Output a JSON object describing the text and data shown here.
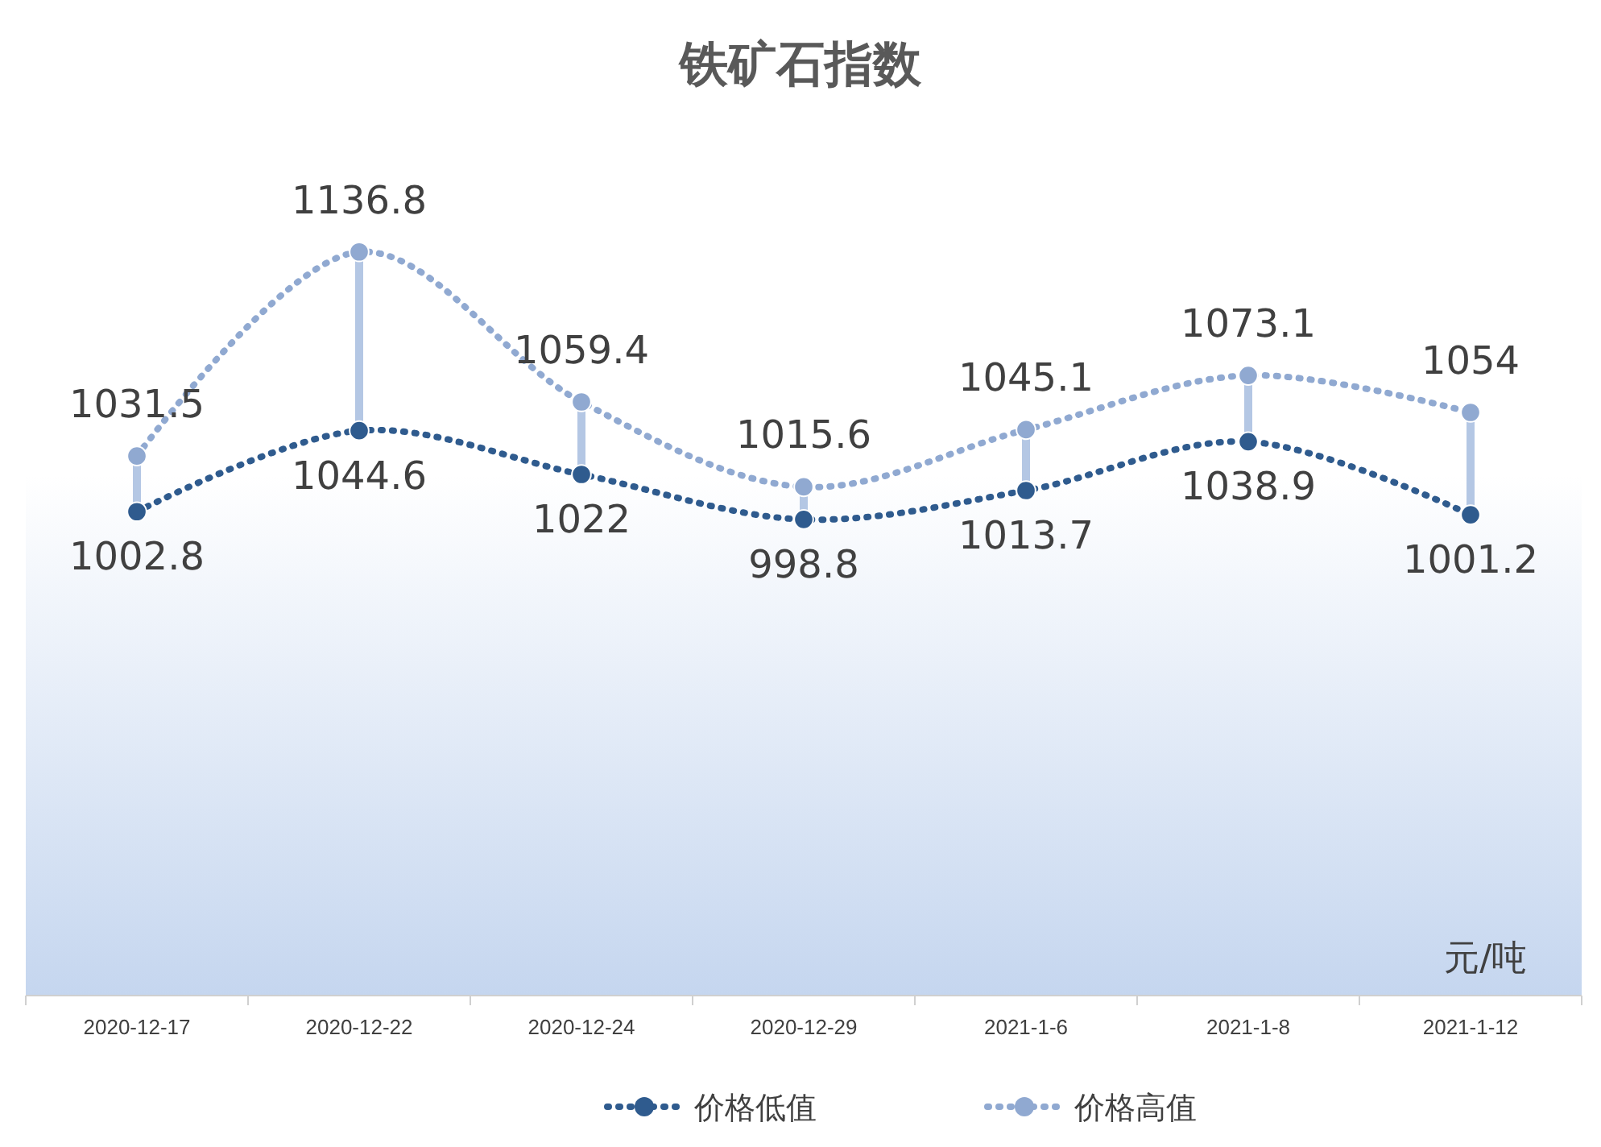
{
  "chart_data": {
    "type": "line",
    "title": "铁矿石指数",
    "categories": [
      "2020-12-17",
      "2020-12-22",
      "2020-12-24",
      "2020-12-29",
      "2021-1-6",
      "2021-1-8",
      "2021-1-12"
    ],
    "series": [
      {
        "name": "价格低值",
        "color": "#2f5b8e",
        "values": [
          1002.8,
          1044.6,
          1022,
          998.8,
          1013.7,
          1038.9,
          1001.2
        ]
      },
      {
        "name": "价格高值",
        "color": "#90a9d1",
        "values": [
          1031.5,
          1136.8,
          1059.4,
          1015.6,
          1045.1,
          1073.1,
          1054
        ]
      }
    ],
    "annotations": [
      "元/吨"
    ],
    "data_labels": true,
    "legend": "bottom",
    "marker": "circle",
    "line_style": "dotted"
  }
}
